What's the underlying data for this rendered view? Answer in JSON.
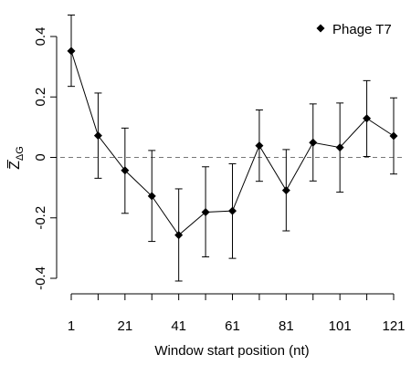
{
  "chart_data": {
    "type": "line",
    "title": "",
    "xlabel": "Window start position (nt)",
    "ylabel": "Z̅",
    "ylabel_subscript": "ΔG",
    "xlim": [
      1,
      121
    ],
    "ylim": [
      -0.42,
      0.48
    ],
    "x_ticks": [
      1,
      11,
      21,
      31,
      41,
      51,
      61,
      71,
      81,
      91,
      101,
      111,
      121
    ],
    "x_tick_labels": [
      "1",
      "21",
      "41",
      "61",
      "81",
      "101",
      "121"
    ],
    "x_tick_label_values": [
      1,
      21,
      41,
      61,
      81,
      101,
      121
    ],
    "y_ticks": [
      -0.4,
      -0.2,
      0,
      0.2,
      0.4
    ],
    "y_tick_labels": [
      "-0.4",
      "-0.2",
      "0",
      "0.2",
      "0.4"
    ],
    "reference_line": 0,
    "grid": false,
    "legend_position": "top-right",
    "series": [
      {
        "name": "Phage T7",
        "marker": "diamond",
        "color": "#000000",
        "x": [
          1,
          11,
          21,
          31,
          41,
          51,
          61,
          71,
          81,
          91,
          101,
          111,
          121
        ],
        "y": [
          0.352,
          0.072,
          -0.043,
          -0.128,
          -0.257,
          -0.181,
          -0.177,
          0.039,
          -0.109,
          0.049,
          0.033,
          0.129,
          0.071
        ],
        "err_low": [
          0.235,
          -0.069,
          -0.185,
          -0.278,
          -0.409,
          -0.329,
          -0.334,
          -0.079,
          -0.243,
          -0.078,
          -0.115,
          0.003,
          -0.055
        ],
        "err_high": [
          0.471,
          0.213,
          0.097,
          0.023,
          -0.104,
          -0.031,
          -0.021,
          0.157,
          0.026,
          0.177,
          0.18,
          0.254,
          0.197
        ]
      }
    ]
  }
}
